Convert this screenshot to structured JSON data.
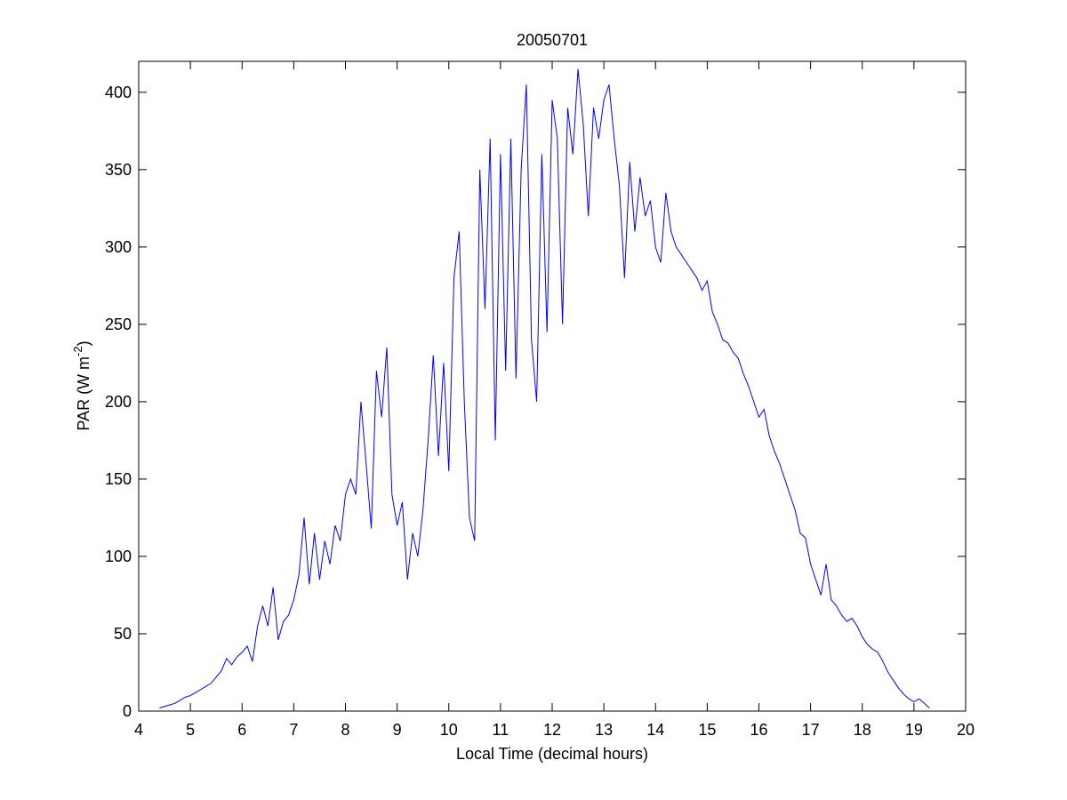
{
  "chart_data": {
    "type": "line",
    "title": "20050701",
    "xlabel": "Local Time (decimal hours)",
    "ylabel": [
      "PAR (W m",
      "-2",
      ")"
    ],
    "color": "#0000ff",
    "xlim": [
      4,
      20
    ],
    "ylim": [
      0,
      420
    ],
    "xticks": [
      4,
      5,
      6,
      7,
      8,
      9,
      10,
      11,
      12,
      13,
      14,
      15,
      16,
      17,
      18,
      19,
      20
    ],
    "yticks": [
      0,
      50,
      100,
      150,
      200,
      250,
      300,
      350,
      400
    ],
    "grid": false,
    "x": [
      4.4,
      4.5,
      4.6,
      4.7,
      4.8,
      4.9,
      5.0,
      5.1,
      5.2,
      5.3,
      5.4,
      5.5,
      5.6,
      5.7,
      5.8,
      5.9,
      6.0,
      6.1,
      6.2,
      6.3,
      6.4,
      6.5,
      6.6,
      6.7,
      6.8,
      6.9,
      7.0,
      7.1,
      7.2,
      7.3,
      7.4,
      7.5,
      7.6,
      7.7,
      7.8,
      7.9,
      8.0,
      8.1,
      8.2,
      8.3,
      8.4,
      8.5,
      8.6,
      8.7,
      8.8,
      8.9,
      9.0,
      9.1,
      9.2,
      9.3,
      9.4,
      9.5,
      9.6,
      9.7,
      9.8,
      9.9,
      10.0,
      10.1,
      10.2,
      10.3,
      10.4,
      10.5,
      10.6,
      10.7,
      10.8,
      10.9,
      11.0,
      11.1,
      11.2,
      11.3,
      11.4,
      11.5,
      11.6,
      11.7,
      11.8,
      11.9,
      12.0,
      12.1,
      12.2,
      12.3,
      12.4,
      12.5,
      12.6,
      12.7,
      12.8,
      12.9,
      13.0,
      13.1,
      13.2,
      13.3,
      13.4,
      13.5,
      13.6,
      13.7,
      13.8,
      13.9,
      14.0,
      14.1,
      14.2,
      14.3,
      14.4,
      14.5,
      14.6,
      14.7,
      14.8,
      14.9,
      15.0,
      15.1,
      15.2,
      15.3,
      15.4,
      15.5,
      15.6,
      15.7,
      15.8,
      15.9,
      16.0,
      16.1,
      16.2,
      16.3,
      16.4,
      16.5,
      16.6,
      16.7,
      16.8,
      16.9,
      17.0,
      17.1,
      17.2,
      17.3,
      17.4,
      17.5,
      17.6,
      17.7,
      17.8,
      17.9,
      18.0,
      18.1,
      18.2,
      18.3,
      18.4,
      18.5,
      18.6,
      18.7,
      18.8,
      18.9,
      19.0,
      19.1,
      19.2,
      19.3
    ],
    "values": [
      2,
      3,
      4,
      5,
      7,
      9,
      10,
      12,
      14,
      16,
      18,
      22,
      26,
      34,
      30,
      35,
      38,
      42,
      32,
      55,
      68,
      55,
      80,
      46,
      58,
      62,
      72,
      88,
      125,
      82,
      115,
      85,
      110,
      95,
      120,
      110,
      140,
      150,
      140,
      200,
      160,
      118,
      220,
      190,
      235,
      140,
      120,
      135,
      85,
      115,
      100,
      130,
      175,
      230,
      165,
      225,
      155,
      280,
      310,
      200,
      125,
      110,
      350,
      260,
      370,
      175,
      360,
      220,
      370,
      215,
      350,
      405,
      240,
      200,
      360,
      245,
      395,
      370,
      250,
      390,
      360,
      415,
      380,
      320,
      390,
      370,
      395,
      405,
      370,
      340,
      280,
      355,
      310,
      345,
      320,
      330,
      300,
      290,
      335,
      310,
      300,
      295,
      290,
      285,
      280,
      272,
      278,
      258,
      250,
      240,
      238,
      232,
      228,
      218,
      210,
      200,
      190,
      195,
      178,
      168,
      160,
      150,
      140,
      130,
      115,
      112,
      95,
      85,
      75,
      95,
      72,
      68,
      62,
      58,
      60,
      55,
      48,
      43,
      40,
      38,
      32,
      25,
      20,
      15,
      11,
      8,
      6,
      8,
      5,
      2
    ]
  }
}
